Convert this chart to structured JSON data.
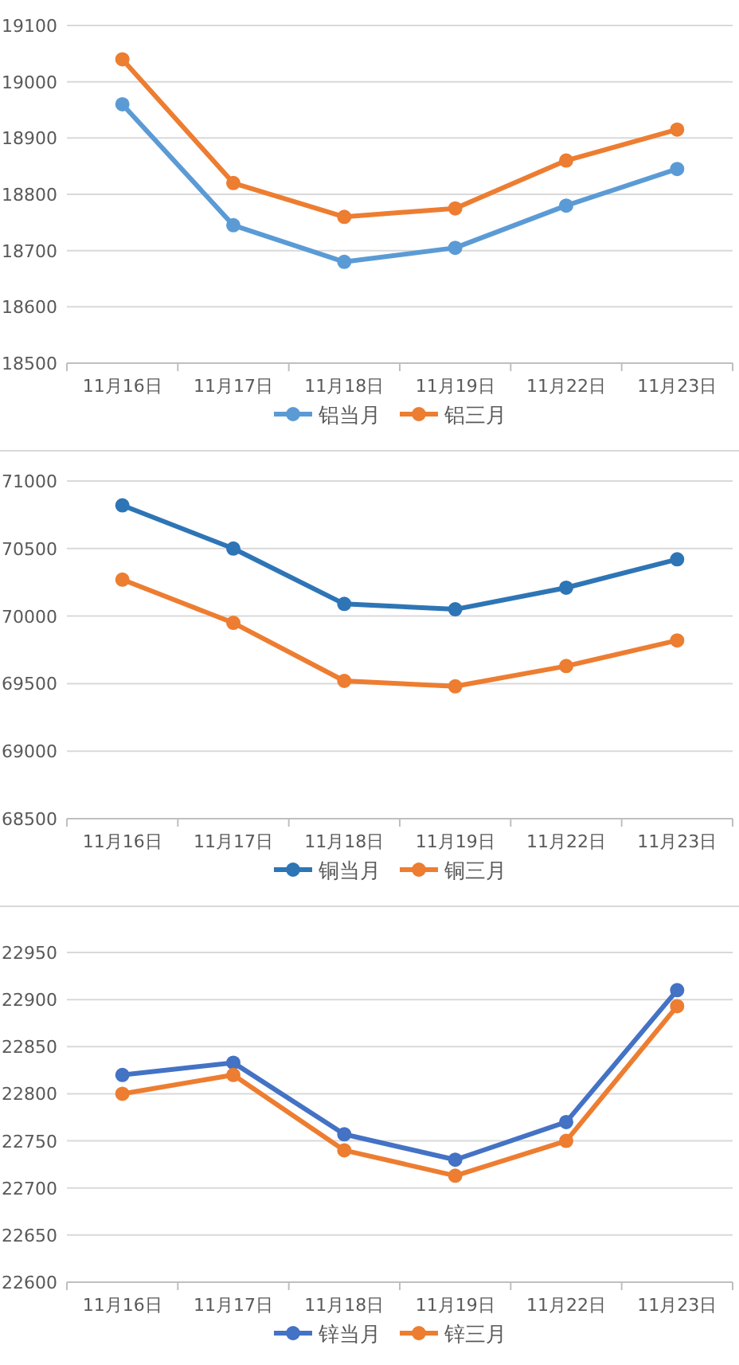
{
  "chart_data": [
    {
      "type": "line",
      "categories": [
        "11月16日",
        "11月17日",
        "11月18日",
        "11月19日",
        "11月22日",
        "11月23日"
      ],
      "ylim": [
        18500,
        19100
      ],
      "yticks": [
        18500,
        18600,
        18700,
        18800,
        18900,
        19000,
        19100
      ],
      "grid": "y",
      "legend": "bottom",
      "marker": "circle",
      "line_style": "solid",
      "series": [
        {
          "name": "铝当月",
          "color": "#5b9bd5",
          "values": [
            18960,
            18745,
            18680,
            18705,
            18780,
            18845
          ]
        },
        {
          "name": "铝三月",
          "color": "#ed7d31",
          "values": [
            19040,
            18820,
            18760,
            18775,
            18860,
            18915
          ]
        }
      ]
    },
    {
      "type": "line",
      "categories": [
        "11月16日",
        "11月17日",
        "11月18日",
        "11月19日",
        "11月22日",
        "11月23日"
      ],
      "ylim": [
        68500,
        71000
      ],
      "yticks": [
        68500,
        69000,
        69500,
        70000,
        70500,
        71000
      ],
      "grid": "y",
      "legend": "bottom",
      "marker": "circle",
      "line_style": "solid",
      "series": [
        {
          "name": "铜当月",
          "color": "#2e75b6",
          "values": [
            70820,
            70500,
            70090,
            70050,
            70210,
            70420
          ]
        },
        {
          "name": "铜三月",
          "color": "#ed7d31",
          "values": [
            70270,
            69950,
            69520,
            69480,
            69630,
            69820
          ]
        }
      ]
    },
    {
      "type": "line",
      "categories": [
        "11月16日",
        "11月17日",
        "11月18日",
        "11月19日",
        "11月22日",
        "11月23日"
      ],
      "ylim": [
        22600,
        22950
      ],
      "yticks": [
        22600,
        22650,
        22700,
        22750,
        22800,
        22850,
        22900,
        22950
      ],
      "grid": "y",
      "legend": "bottom",
      "marker": "circle",
      "line_style": "solid",
      "series": [
        {
          "name": "锌当月",
          "color": "#4472c4",
          "values": [
            22820,
            22833,
            22757,
            22730,
            22770,
            22910
          ]
        },
        {
          "name": "锌三月",
          "color": "#ed7d31",
          "values": [
            22800,
            22820,
            22740,
            22713,
            22750,
            22893
          ]
        }
      ]
    }
  ]
}
